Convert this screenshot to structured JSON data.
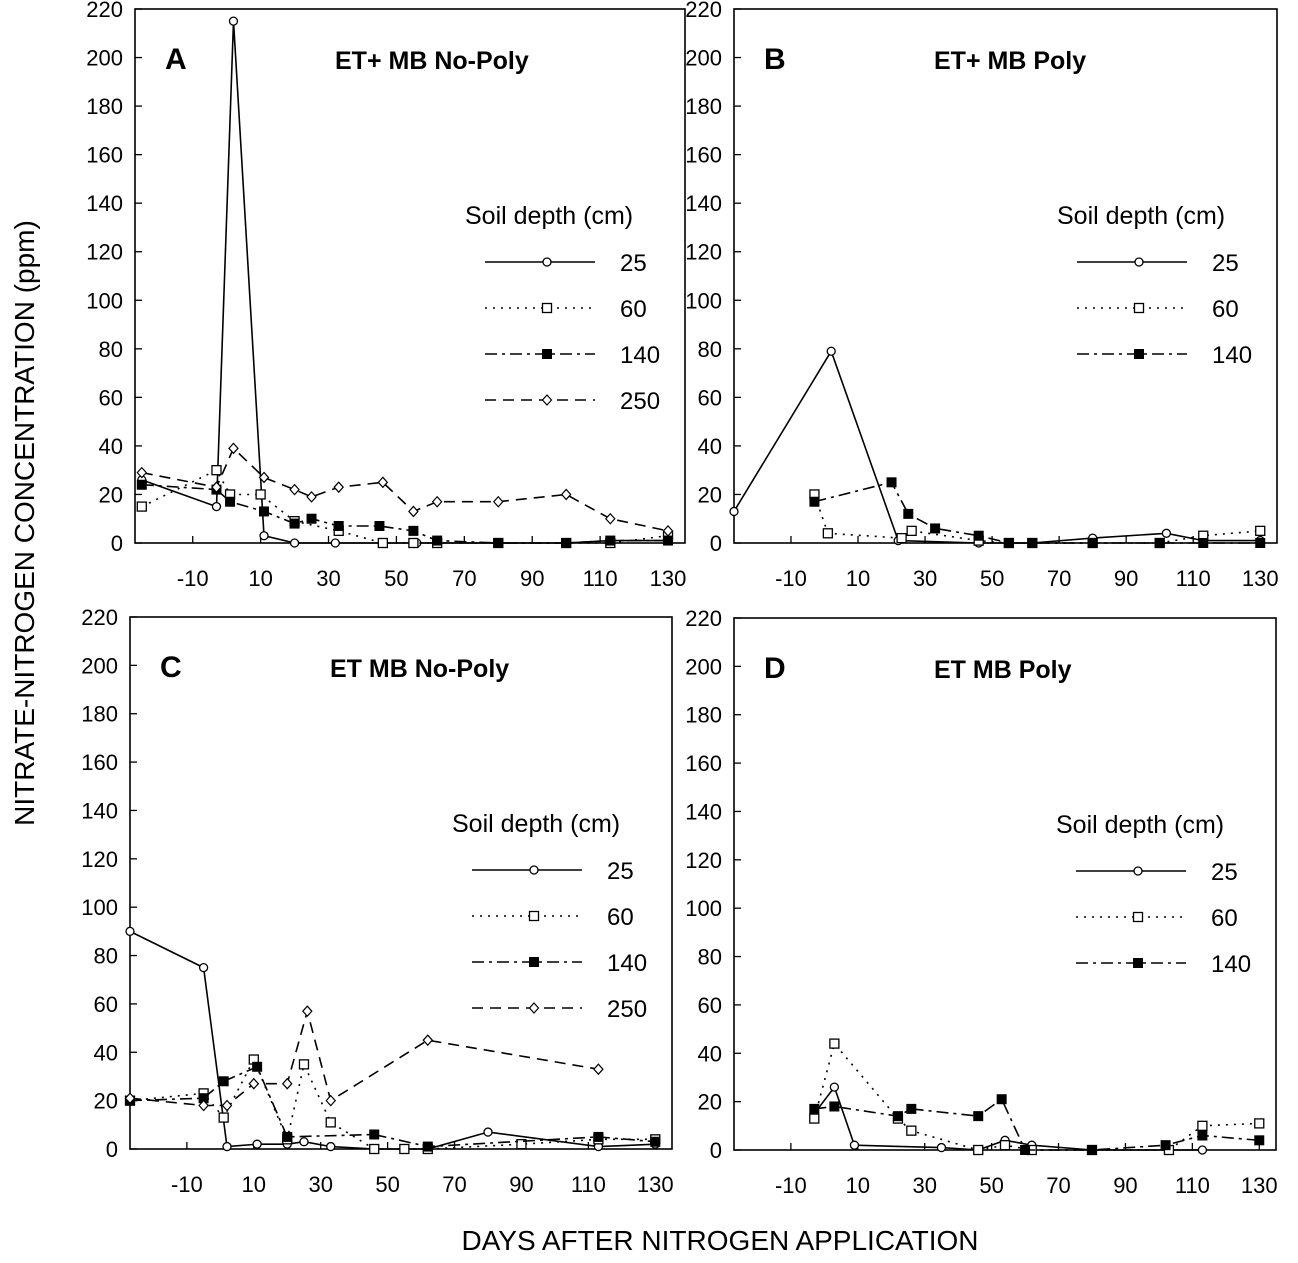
{
  "chart_data": {
    "ylabel": "NITRATE-NITROGEN CONCENTRATION (ppm)",
    "xlabel": "DAYS AFTER NITROGEN APPLICATION",
    "legend_title": "Soil depth (cm)",
    "yticks": [
      0,
      20,
      40,
      60,
      80,
      100,
      120,
      140,
      160,
      180,
      200,
      220
    ],
    "xticks": [
      -10,
      10,
      30,
      50,
      70,
      90,
      110,
      130
    ],
    "panels": [
      {
        "letter": "A",
        "title": "ET+ MB No-Poly",
        "type": "line",
        "ylim": [
          0,
          220
        ],
        "xlim": [
          -27,
          135
        ],
        "legend_position": "right-middle",
        "series": [
          {
            "name": "25",
            "style": "solid",
            "marker": "circle-open",
            "x": [
              -25,
              -3,
              2,
              11,
              20,
              32,
              46,
              56,
              62,
              80,
              100,
              113,
              130
            ],
            "y": [
              26,
              15,
              215,
              3,
              0,
              0,
              0,
              0,
              0,
              0,
              0,
              1,
              1
            ]
          },
          {
            "name": "60",
            "style": "dotted",
            "marker": "square-open",
            "x": [
              -25,
              -3,
              1,
              10,
              20,
              33,
              46,
              55,
              62,
              80,
              100,
              113,
              130
            ],
            "y": [
              15,
              30,
              20,
              20,
              9,
              5,
              0,
              0,
              0,
              0,
              0,
              0,
              3
            ]
          },
          {
            "name": "140",
            "style": "dashdot",
            "marker": "square-filled",
            "x": [
              -25,
              -3,
              1,
              11,
              20,
              25,
              33,
              45,
              55,
              62,
              80,
              100,
              113,
              130
            ],
            "y": [
              24,
              22,
              17,
              13,
              8,
              10,
              7,
              7,
              5,
              1,
              0,
              0,
              1,
              1
            ]
          },
          {
            "name": "250",
            "style": "dashed",
            "marker": "diamond-open",
            "x": [
              -25,
              -3,
              2,
              11,
              20,
              25,
              33,
              46,
              55,
              62,
              80,
              100,
              113,
              130
            ],
            "y": [
              29,
              23,
              39,
              27,
              22,
              19,
              23,
              25,
              13,
              17,
              17,
              20,
              10,
              5
            ]
          }
        ]
      },
      {
        "letter": "B",
        "title": "ET+ MB Poly",
        "type": "line",
        "ylim": [
          0,
          220
        ],
        "xlim": [
          -27,
          135
        ],
        "legend_position": "right-middle",
        "series": [
          {
            "name": "25",
            "style": "solid",
            "marker": "circle-open",
            "x": [
              -27,
              2,
              22,
              46,
              55,
              62,
              80,
              102,
              113,
              130
            ],
            "y": [
              13,
              79,
              1,
              0,
              0,
              0,
              2,
              4,
              1,
              1
            ]
          },
          {
            "name": "60",
            "style": "dotted",
            "marker": "square-open",
            "x": [
              -3,
              1,
              23,
              26,
              46,
              55,
              62,
              80,
              100,
              113,
              130
            ],
            "y": [
              20,
              4,
              2,
              5,
              1,
              0,
              0,
              0,
              0,
              3,
              5
            ]
          },
          {
            "name": "140",
            "style": "dashdot",
            "marker": "square-filled",
            "x": [
              -3,
              20,
              25,
              33,
              46,
              55,
              62,
              80,
              100,
              113,
              130
            ],
            "y": [
              17,
              25,
              12,
              6,
              3,
              0,
              0,
              0,
              0,
              0,
              0
            ]
          }
        ]
      },
      {
        "letter": "C",
        "title": "ET MB No-Poly",
        "type": "line",
        "ylim": [
          0,
          220
        ],
        "xlim": [
          -27,
          135
        ],
        "legend_position": "right-middle",
        "series": [
          {
            "name": "25",
            "style": "solid",
            "marker": "circle-open",
            "x": [
              -27,
              -5,
              2,
              11,
              20,
              25,
              33,
              46,
              55,
              62,
              80,
              113,
              130
            ],
            "y": [
              90,
              75,
              1,
              2,
              2,
              3,
              1,
              0,
              0,
              0,
              7,
              1,
              2
            ]
          },
          {
            "name": "60",
            "style": "dotted",
            "marker": "square-open",
            "x": [
              -27,
              -5,
              1,
              10,
              20,
              25,
              33,
              46,
              55,
              62,
              90,
              113,
              130
            ],
            "y": [
              20,
              23,
              13,
              37,
              4,
              35,
              11,
              0,
              0,
              0,
              2,
              4,
              4
            ]
          },
          {
            "name": "140",
            "style": "dashdot",
            "marker": "square-filled",
            "x": [
              -27,
              -5,
              1,
              11,
              20,
              46,
              62,
              113,
              130
            ],
            "y": [
              20,
              21,
              28,
              34,
              5,
              6,
              1,
              5,
              3
            ]
          },
          {
            "name": "250",
            "style": "dashed",
            "marker": "diamond-open",
            "x": [
              -27,
              -5,
              2,
              10,
              20,
              26,
              33,
              62,
              113
            ],
            "y": [
              21,
              18,
              18,
              27,
              27,
              57,
              20,
              45,
              33
            ]
          }
        ]
      },
      {
        "letter": "D",
        "title": "ET MB Poly",
        "type": "line",
        "ylim": [
          0,
          220
        ],
        "xlim": [
          -27,
          135
        ],
        "legend_position": "right-middle",
        "series": [
          {
            "name": "25",
            "style": "solid",
            "marker": "circle-open",
            "x": [
              -3,
              3,
              9,
              35,
              46,
              54,
              62,
              80,
              103,
              113
            ],
            "y": [
              15,
              26,
              2,
              1,
              0,
              4,
              2,
              0,
              0,
              0
            ]
          },
          {
            "name": "60",
            "style": "dotted",
            "marker": "square-open",
            "x": [
              -3,
              3,
              22,
              26,
              46,
              54,
              62,
              80,
              103,
              113,
              130
            ],
            "y": [
              13,
              44,
              13,
              8,
              0,
              2,
              0,
              0,
              0,
              10,
              11
            ]
          },
          {
            "name": "140",
            "style": "dashdot",
            "marker": "square-filled",
            "x": [
              -3,
              3,
              22,
              26,
              46,
              53,
              60,
              80,
              102,
              113,
              130
            ],
            "y": [
              17,
              18,
              14,
              17,
              14,
              21,
              0,
              0,
              2,
              6,
              4
            ]
          }
        ]
      }
    ]
  }
}
